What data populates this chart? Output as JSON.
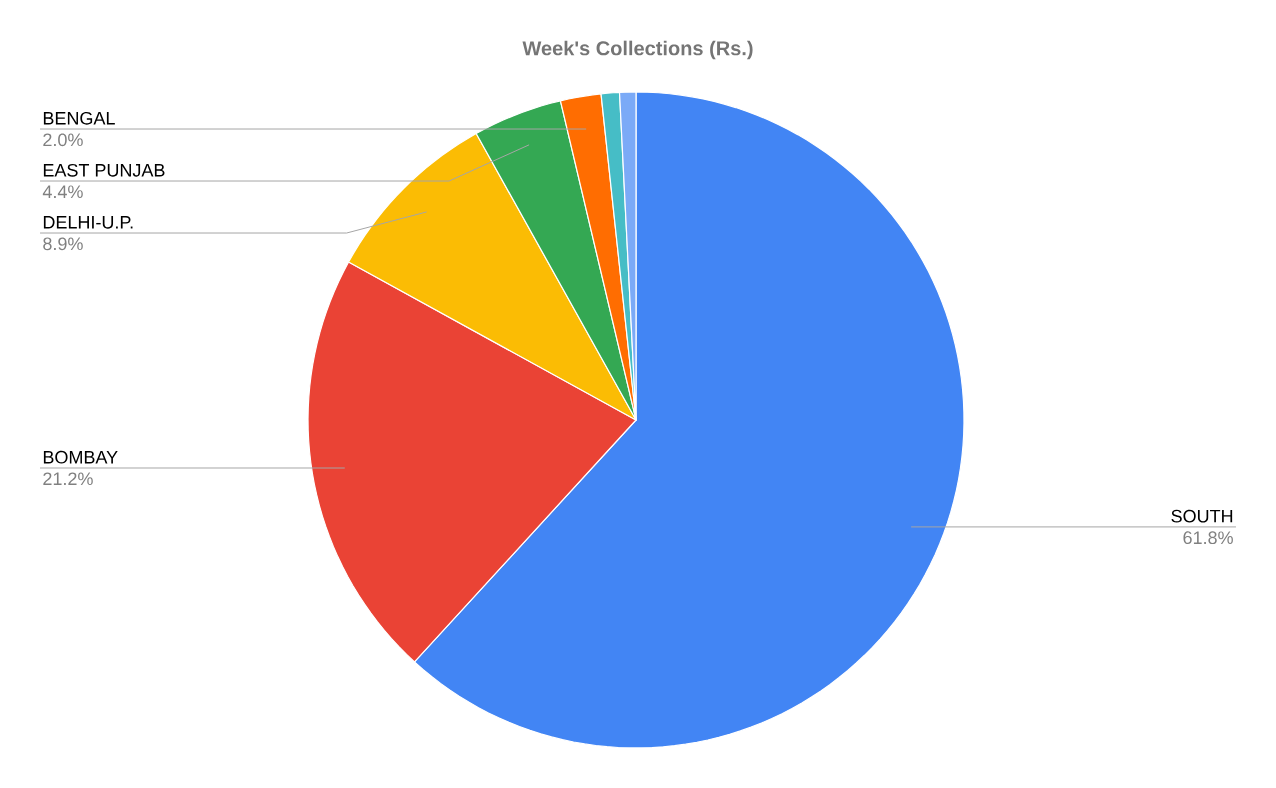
{
  "chart_data": {
    "type": "pie",
    "title": "Week's Collections (Rs.)",
    "categories": [
      "SOUTH",
      "BOMBAY",
      "DELHI-U.P.",
      "EAST PUNJAB",
      "BENGAL",
      null,
      null
    ],
    "values": [
      61.8,
      21.2,
      8.9,
      4.4,
      2.0,
      0.9,
      0.8
    ],
    "value_labels": [
      "61.8%",
      "21.2%",
      "8.9%",
      "4.4%",
      "2.0%",
      null,
      null
    ],
    "colors": [
      "#4285f4",
      "#ea4335",
      "#fbbc04",
      "#34a853",
      "#ff6d01",
      "#46bdc6",
      "#7baaf7"
    ]
  }
}
